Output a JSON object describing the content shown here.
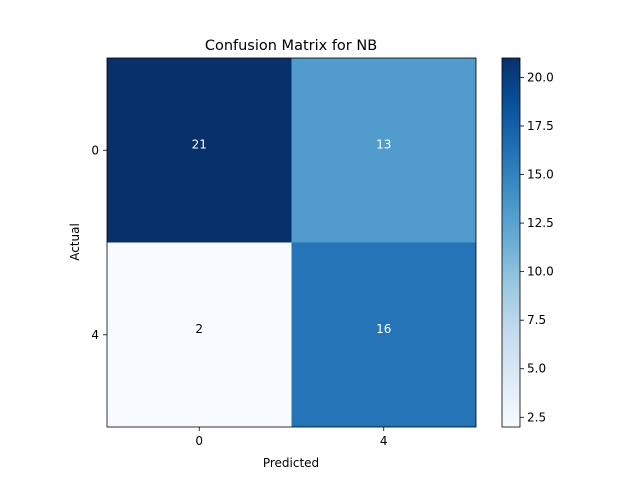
{
  "chart_data": {
    "type": "heatmap",
    "title": "Confusion Matrix for NB",
    "xlabel": "Predicted",
    "ylabel": "Actual",
    "x_categories": [
      "0",
      "4"
    ],
    "y_categories": [
      "0",
      "4"
    ],
    "values": [
      [
        21,
        13
      ],
      [
        2,
        16
      ]
    ],
    "colormap": "Blues",
    "colorbar": {
      "range": [
        2,
        21
      ],
      "ticks": [
        2.5,
        5.0,
        7.5,
        10.0,
        12.5,
        15.0,
        17.5,
        20.0
      ],
      "tick_labels": [
        "2.5",
        "5.0",
        "7.5",
        "10.0",
        "12.5",
        "15.0",
        "17.5",
        "20.0"
      ]
    },
    "colors": {
      "low": "#f7fbff",
      "high": "#08306b",
      "text_light": "#ffffff",
      "text_dark": "#000000"
    }
  }
}
